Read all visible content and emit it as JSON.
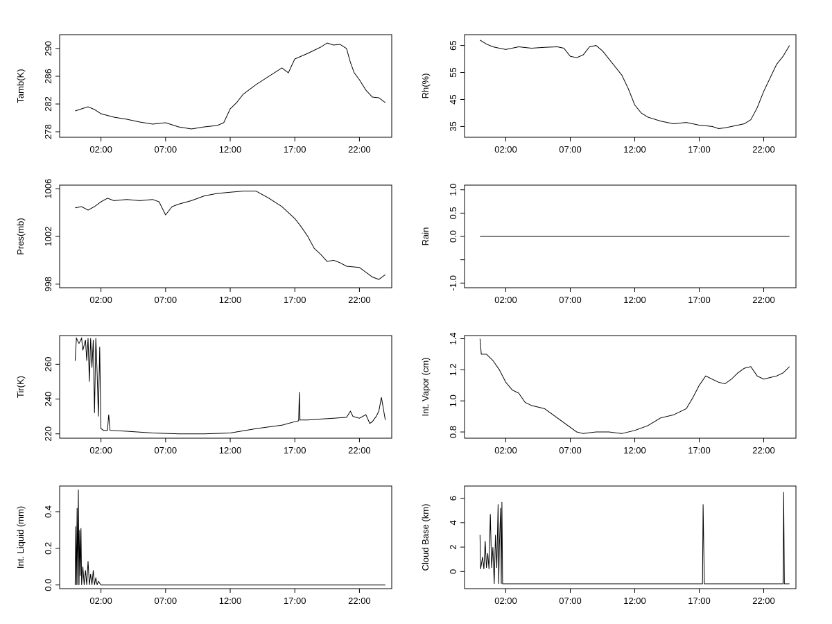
{
  "x_tick_labels": [
    "02:00",
    "07:00",
    "12:00",
    "17:00",
    "22:00"
  ],
  "chart_data": [
    {
      "type": "line",
      "ylabel": "Tamb(K)",
      "xlim": [
        -1.2,
        24.5
      ],
      "ylim": [
        277.2,
        292.0
      ],
      "yticks": [
        278,
        282,
        286,
        290
      ],
      "ytick_labels": [
        "278",
        "282",
        "286",
        "290"
      ],
      "x_ticks": [
        2,
        7,
        12,
        17,
        22
      ],
      "series_points": [
        [
          0,
          281
        ],
        [
          0.5,
          281.3
        ],
        [
          1,
          281.6
        ],
        [
          1.5,
          281.2
        ],
        [
          2,
          280.6
        ],
        [
          3,
          280.1
        ],
        [
          4,
          279.8
        ],
        [
          5,
          279.4
        ],
        [
          6,
          279.1
        ],
        [
          7,
          279.3
        ],
        [
          7.5,
          279.0
        ],
        [
          8,
          278.7
        ],
        [
          9,
          278.4
        ],
        [
          10,
          278.7
        ],
        [
          11,
          278.9
        ],
        [
          11.5,
          279.3
        ],
        [
          12,
          281.3
        ],
        [
          12.5,
          282.2
        ],
        [
          13,
          283.4
        ],
        [
          14,
          284.8
        ],
        [
          15,
          286.0
        ],
        [
          16,
          287.2
        ],
        [
          16.5,
          286.5
        ],
        [
          17,
          288.5
        ],
        [
          18,
          289.3
        ],
        [
          19,
          290.2
        ],
        [
          19.5,
          290.8
        ],
        [
          20,
          290.5
        ],
        [
          20.5,
          290.6
        ],
        [
          21,
          290.0
        ],
        [
          21.3,
          288.0
        ],
        [
          21.6,
          286.5
        ],
        [
          22,
          285.5
        ],
        [
          22.5,
          284.0
        ],
        [
          23,
          283.0
        ],
        [
          23.5,
          282.9
        ],
        [
          24,
          282.2
        ]
      ]
    },
    {
      "type": "line",
      "ylabel": "Rh(%)",
      "xlim": [
        -1.2,
        24.5
      ],
      "ylim": [
        31,
        69
      ],
      "yticks": [
        35,
        45,
        55,
        65
      ],
      "ytick_labels": [
        "35",
        "45",
        "55",
        "65"
      ],
      "x_ticks": [
        2,
        7,
        12,
        17,
        22
      ],
      "series_points": [
        [
          0,
          67
        ],
        [
          0.5,
          65.5
        ],
        [
          1,
          64.5
        ],
        [
          1.5,
          64
        ],
        [
          2,
          63.5
        ],
        [
          3,
          64.5
        ],
        [
          4,
          64
        ],
        [
          5,
          64.3
        ],
        [
          6,
          64.5
        ],
        [
          6.5,
          64
        ],
        [
          7,
          61
        ],
        [
          7.5,
          60.5
        ],
        [
          8,
          61.5
        ],
        [
          8.5,
          64.5
        ],
        [
          9,
          65
        ],
        [
          9.5,
          63
        ],
        [
          10,
          60
        ],
        [
          10.5,
          57
        ],
        [
          11,
          54
        ],
        [
          11.5,
          49
        ],
        [
          12,
          43
        ],
        [
          12.5,
          40
        ],
        [
          13,
          38.5
        ],
        [
          14,
          37
        ],
        [
          15,
          36
        ],
        [
          16,
          36.5
        ],
        [
          17,
          35.5
        ],
        [
          18,
          35
        ],
        [
          18.5,
          34.2
        ],
        [
          19,
          34.5
        ],
        [
          20,
          35.5
        ],
        [
          20.5,
          36
        ],
        [
          21,
          37.5
        ],
        [
          21.5,
          42
        ],
        [
          22,
          48
        ],
        [
          22.5,
          53
        ],
        [
          23,
          58
        ],
        [
          23.5,
          61
        ],
        [
          24,
          65
        ]
      ]
    },
    {
      "type": "line",
      "ylabel": "Pres(mb)",
      "xlim": [
        -1.2,
        24.5
      ],
      "ylim": [
        997.7,
        1006.3
      ],
      "yticks": [
        998,
        1002,
        1006
      ],
      "ytick_labels": [
        "998",
        "1002",
        "1006"
      ],
      "x_ticks": [
        2,
        7,
        12,
        17,
        22
      ],
      "series_points": [
        [
          0,
          1004.4
        ],
        [
          0.5,
          1004.5
        ],
        [
          1,
          1004.2
        ],
        [
          1.5,
          1004.5
        ],
        [
          2,
          1004.9
        ],
        [
          2.5,
          1005.2
        ],
        [
          3,
          1005.0
        ],
        [
          4,
          1005.1
        ],
        [
          5,
          1005.0
        ],
        [
          6,
          1005.1
        ],
        [
          6.5,
          1004.9
        ],
        [
          7,
          1003.8
        ],
        [
          7.5,
          1004.5
        ],
        [
          8,
          1004.7
        ],
        [
          9,
          1005.0
        ],
        [
          10,
          1005.4
        ],
        [
          11,
          1005.6
        ],
        [
          12,
          1005.7
        ],
        [
          13,
          1005.8
        ],
        [
          14,
          1005.8
        ],
        [
          14.5,
          1005.5
        ],
        [
          15,
          1005.2
        ],
        [
          16,
          1004.5
        ],
        [
          17,
          1003.5
        ],
        [
          17.5,
          1002.8
        ],
        [
          18,
          1002.0
        ],
        [
          18.5,
          1001.0
        ],
        [
          19,
          1000.5
        ],
        [
          19.5,
          999.9
        ],
        [
          20,
          1000.0
        ],
        [
          20.5,
          999.8
        ],
        [
          21,
          999.5
        ],
        [
          22,
          999.4
        ],
        [
          22.5,
          999.0
        ],
        [
          23,
          998.6
        ],
        [
          23.5,
          998.4
        ],
        [
          24,
          998.8
        ]
      ]
    },
    {
      "type": "line",
      "ylabel": "Rain",
      "xlim": [
        -1.2,
        24.5
      ],
      "ylim": [
        -1.1,
        1.1
      ],
      "yticks": [
        -1.0,
        -0.5,
        0.0,
        0.5,
        1.0
      ],
      "ytick_labels": [
        "-1.0",
        "",
        "0.0",
        "0.5",
        "1.0"
      ],
      "x_ticks": [
        2,
        7,
        12,
        17,
        22
      ],
      "series_points": [
        [
          0,
          0
        ],
        [
          24,
          0
        ]
      ]
    },
    {
      "type": "line",
      "ylabel": "Tir(K)",
      "xlim": [
        -1.2,
        24.5
      ],
      "ylim": [
        217.5,
        276.5
      ],
      "yticks": [
        220,
        240,
        260
      ],
      "ytick_labels": [
        "220",
        "240",
        "260"
      ],
      "x_ticks": [
        2,
        7,
        12,
        17,
        22
      ],
      "series_points": [
        [
          0,
          262
        ],
        [
          0.1,
          275
        ],
        [
          0.3,
          272
        ],
        [
          0.5,
          275
        ],
        [
          0.6,
          268
        ],
        [
          0.8,
          274
        ],
        [
          0.9,
          262
        ],
        [
          1.0,
          275
        ],
        [
          1.1,
          250
        ],
        [
          1.2,
          275
        ],
        [
          1.3,
          258
        ],
        [
          1.4,
          274
        ],
        [
          1.5,
          232
        ],
        [
          1.6,
          275
        ],
        [
          1.7,
          255
        ],
        [
          1.8,
          230
        ],
        [
          1.9,
          270
        ],
        [
          2.0,
          223
        ],
        [
          2.2,
          222
        ],
        [
          2.5,
          222
        ],
        [
          2.6,
          231
        ],
        [
          2.7,
          222
        ],
        [
          4,
          221.5
        ],
        [
          6,
          220.5
        ],
        [
          8,
          220
        ],
        [
          10,
          220
        ],
        [
          12,
          220.5
        ],
        [
          14,
          223
        ],
        [
          16,
          225
        ],
        [
          17,
          227
        ],
        [
          17.3,
          227.5
        ],
        [
          17.35,
          244
        ],
        [
          17.4,
          228
        ],
        [
          18,
          228
        ],
        [
          19,
          228.5
        ],
        [
          20,
          229
        ],
        [
          21,
          229.5
        ],
        [
          21.3,
          233
        ],
        [
          21.5,
          230
        ],
        [
          22,
          229
        ],
        [
          22.5,
          231
        ],
        [
          22.8,
          226
        ],
        [
          23,
          227
        ],
        [
          23.3,
          230
        ],
        [
          23.5,
          233
        ],
        [
          23.7,
          241
        ],
        [
          24,
          228
        ]
      ]
    },
    {
      "type": "line",
      "ylabel": "Int. Vapor (cm)",
      "xlim": [
        -1.2,
        24.5
      ],
      "ylim": [
        0.76,
        1.42
      ],
      "yticks": [
        0.8,
        1.0,
        1.2,
        1.4
      ],
      "ytick_labels": [
        "0.8",
        "1.0",
        "1.2",
        "1.4"
      ],
      "x_ticks": [
        2,
        7,
        12,
        17,
        22
      ],
      "series_points": [
        [
          0,
          1.4
        ],
        [
          0.1,
          1.3
        ],
        [
          0.5,
          1.3
        ],
        [
          1,
          1.26
        ],
        [
          1.5,
          1.2
        ],
        [
          2,
          1.12
        ],
        [
          2.5,
          1.07
        ],
        [
          3,
          1.05
        ],
        [
          3.5,
          0.99
        ],
        [
          4,
          0.97
        ],
        [
          5,
          0.95
        ],
        [
          6,
          0.89
        ],
        [
          7,
          0.83
        ],
        [
          7.5,
          0.8
        ],
        [
          8,
          0.79
        ],
        [
          9,
          0.8
        ],
        [
          10,
          0.8
        ],
        [
          11,
          0.79
        ],
        [
          12,
          0.81
        ],
        [
          13,
          0.84
        ],
        [
          14,
          0.89
        ],
        [
          15,
          0.91
        ],
        [
          16,
          0.95
        ],
        [
          16.5,
          1.02
        ],
        [
          17,
          1.1
        ],
        [
          17.5,
          1.16
        ],
        [
          18,
          1.14
        ],
        [
          18.5,
          1.12
        ],
        [
          19,
          1.11
        ],
        [
          19.5,
          1.14
        ],
        [
          20,
          1.18
        ],
        [
          20.5,
          1.21
        ],
        [
          21,
          1.22
        ],
        [
          21.5,
          1.16
        ],
        [
          22,
          1.14
        ],
        [
          22.5,
          1.15
        ],
        [
          23,
          1.16
        ],
        [
          23.5,
          1.18
        ],
        [
          24,
          1.22
        ]
      ]
    },
    {
      "type": "line",
      "ylabel": "Int. Liquid (mm)",
      "xlim": [
        -1.2,
        24.5
      ],
      "ylim": [
        -0.02,
        0.54
      ],
      "yticks": [
        0.0,
        0.2,
        0.4
      ],
      "ytick_labels": [
        "0.0",
        "0.2",
        "0.4"
      ],
      "x_ticks": [
        2,
        7,
        12,
        17,
        22
      ],
      "series_points": [
        [
          0,
          0.0
        ],
        [
          0.05,
          0.32
        ],
        [
          0.1,
          0.0
        ],
        [
          0.15,
          0.42
        ],
        [
          0.2,
          0.0
        ],
        [
          0.25,
          0.52
        ],
        [
          0.3,
          0.0
        ],
        [
          0.35,
          0.3
        ],
        [
          0.4,
          0.05
        ],
        [
          0.45,
          0.31
        ],
        [
          0.5,
          0.0
        ],
        [
          0.6,
          0.1
        ],
        [
          0.7,
          0.0
        ],
        [
          0.8,
          0.08
        ],
        [
          0.9,
          0.0
        ],
        [
          1.0,
          0.13
        ],
        [
          1.1,
          0.0
        ],
        [
          1.2,
          0.06
        ],
        [
          1.3,
          0.0
        ],
        [
          1.4,
          0.08
        ],
        [
          1.5,
          0.0
        ],
        [
          1.6,
          0.04
        ],
        [
          1.7,
          0.0
        ],
        [
          1.8,
          0.02
        ],
        [
          2.0,
          0.0
        ],
        [
          24,
          0.0
        ]
      ]
    },
    {
      "type": "line",
      "ylabel": "Cloud Base (km)",
      "xlim": [
        -1.2,
        24.5
      ],
      "ylim": [
        -1.4,
        7.0
      ],
      "yticks": [
        0,
        2,
        4,
        6
      ],
      "ytick_labels": [
        "0",
        "2",
        "4",
        "6"
      ],
      "x_ticks": [
        2,
        7,
        12,
        17,
        22
      ],
      "series_points": [
        [
          0,
          3.0
        ],
        [
          0.05,
          0.2
        ],
        [
          0.2,
          1.2
        ],
        [
          0.3,
          0.2
        ],
        [
          0.4,
          2.5
        ],
        [
          0.5,
          0.3
        ],
        [
          0.6,
          1.5
        ],
        [
          0.7,
          0.2
        ],
        [
          0.8,
          4.7
        ],
        [
          0.9,
          0.3
        ],
        [
          1.0,
          2.0
        ],
        [
          1.1,
          -1.0
        ],
        [
          1.2,
          3.0
        ],
        [
          1.3,
          0.3
        ],
        [
          1.4,
          5.5
        ],
        [
          1.45,
          -1.0
        ],
        [
          1.5,
          2.0
        ],
        [
          1.6,
          5.2
        ],
        [
          1.65,
          -1.0
        ],
        [
          1.7,
          5.7
        ],
        [
          1.75,
          -1.0
        ],
        [
          2.0,
          -1.0
        ],
        [
          17.25,
          -1.0
        ],
        [
          17.3,
          5.5
        ],
        [
          17.35,
          2.2
        ],
        [
          17.4,
          -1.0
        ],
        [
          23.5,
          -1.0
        ],
        [
          23.55,
          6.5
        ],
        [
          23.6,
          -1.0
        ],
        [
          24,
          -1.0
        ]
      ]
    }
  ]
}
